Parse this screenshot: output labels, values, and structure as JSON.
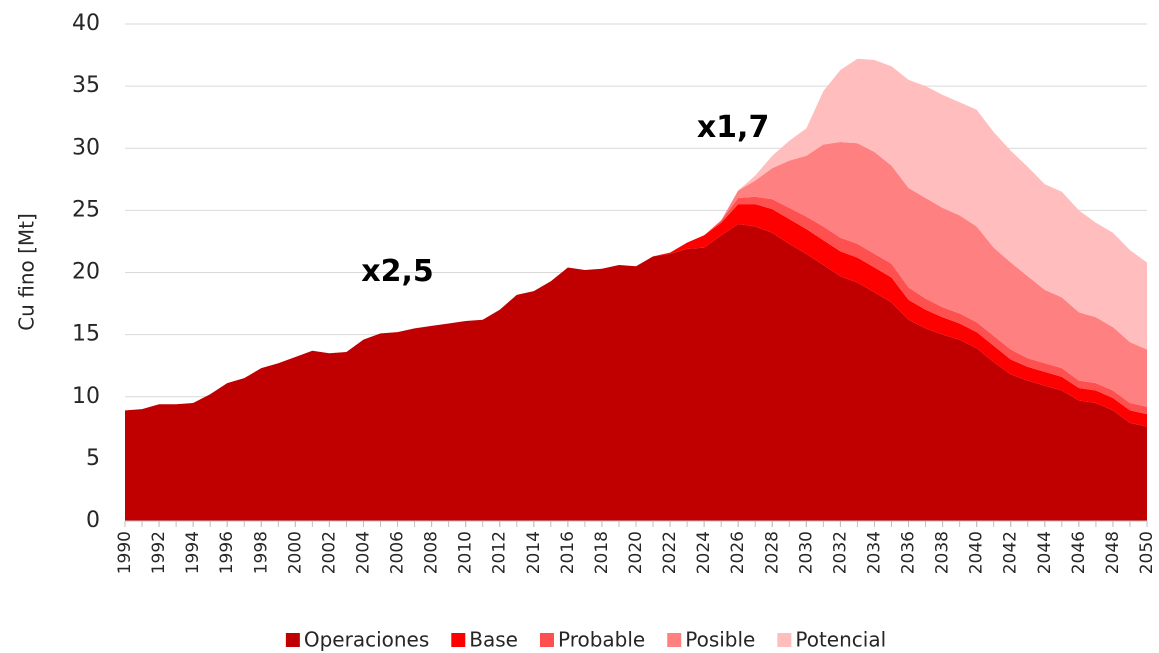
{
  "chart_data": {
    "type": "stacked_area",
    "y_label": "Cu fino [Mt]",
    "annotations": [
      {
        "text": "x2,5",
        "x": 2006,
        "y": 20
      },
      {
        "text": "x1,7",
        "x": 2025.7,
        "y": 31.6
      }
    ],
    "x": [
      1990,
      1991,
      1992,
      1993,
      1994,
      1995,
      1996,
      1997,
      1998,
      1999,
      2000,
      2001,
      2002,
      2003,
      2004,
      2005,
      2006,
      2007,
      2008,
      2009,
      2010,
      2011,
      2012,
      2013,
      2014,
      2015,
      2016,
      2017,
      2018,
      2019,
      2020,
      2021,
      2022,
      2023,
      2024,
      2025,
      2026,
      2027,
      2028,
      2029,
      2030,
      2031,
      2032,
      2033,
      2034,
      2035,
      2036,
      2037,
      2038,
      2039,
      2040,
      2041,
      2042,
      2043,
      2044,
      2045,
      2046,
      2047,
      2048,
      2049,
      2050
    ],
    "xlim": [
      1990,
      2050
    ],
    "xticks": [
      1990,
      1992,
      1994,
      1996,
      1998,
      2000,
      2002,
      2004,
      2006,
      2008,
      2010,
      2012,
      2014,
      2016,
      2018,
      2020,
      2022,
      2024,
      2026,
      2028,
      2030,
      2032,
      2034,
      2036,
      2038,
      2040,
      2042,
      2044,
      2046,
      2048,
      2050
    ],
    "ylim": [
      0,
      40
    ],
    "yticks": [
      0,
      5,
      10,
      15,
      20,
      25,
      30,
      35,
      40
    ],
    "grid": true,
    "legend": "bottom",
    "series": [
      {
        "name": "Operaciones",
        "color": "#c00000",
        "values": [
          8.9,
          9.0,
          9.4,
          9.4,
          9.5,
          10.2,
          11.1,
          11.5,
          12.3,
          12.7,
          13.2,
          13.7,
          13.5,
          13.6,
          14.6,
          15.1,
          15.2,
          15.5,
          15.7,
          15.9,
          16.1,
          16.2,
          17.0,
          18.2,
          18.5,
          19.3,
          20.4,
          20.2,
          20.3,
          20.6,
          20.5,
          21.3,
          21.5,
          21.9,
          22.0,
          23.0,
          23.9,
          23.7,
          23.2,
          22.3,
          21.5,
          20.6,
          19.7,
          19.2,
          18.4,
          17.6,
          16.2,
          15.5,
          15.0,
          14.6,
          13.9,
          12.8,
          11.8,
          11.3,
          10.9,
          10.5,
          9.7,
          9.5,
          8.9,
          7.9,
          7.6
        ]
      },
      {
        "name": "Base",
        "color": "#ff0000",
        "values": [
          0,
          0,
          0,
          0,
          0,
          0,
          0,
          0,
          0,
          0,
          0,
          0,
          0,
          0,
          0,
          0,
          0,
          0,
          0,
          0,
          0,
          0,
          0,
          0,
          0,
          0,
          0,
          0,
          0,
          0,
          0,
          0,
          0.1,
          0.5,
          1.0,
          1.0,
          1.6,
          1.8,
          1.9,
          2.0,
          2.0,
          2.0,
          2.0,
          2.0,
          2.0,
          2.0,
          1.6,
          1.5,
          1.4,
          1.3,
          1.3,
          1.3,
          1.2,
          1.1,
          1.1,
          1.1,
          1.0,
          1.0,
          1.0,
          1.0,
          1.0
        ]
      },
      {
        "name": "Probable",
        "color": "#ff5050",
        "values": [
          0,
          0,
          0,
          0,
          0,
          0,
          0,
          0,
          0,
          0,
          0,
          0,
          0,
          0,
          0,
          0,
          0,
          0,
          0,
          0,
          0,
          0,
          0,
          0,
          0,
          0,
          0,
          0,
          0,
          0,
          0,
          0,
          0,
          0,
          0,
          0.2,
          0.5,
          0.6,
          0.8,
          0.9,
          1.0,
          1.1,
          1.1,
          1.1,
          1.1,
          1.1,
          1.0,
          0.9,
          0.8,
          0.8,
          0.8,
          0.8,
          0.8,
          0.7,
          0.7,
          0.7,
          0.6,
          0.6,
          0.6,
          0.6,
          0.6
        ]
      },
      {
        "name": "Posible",
        "color": "#ff8080",
        "values": [
          0,
          0,
          0,
          0,
          0,
          0,
          0,
          0,
          0,
          0,
          0,
          0,
          0,
          0,
          0,
          0,
          0,
          0,
          0,
          0,
          0,
          0,
          0,
          0,
          0,
          0,
          0,
          0,
          0,
          0,
          0,
          0,
          0,
          0,
          0,
          0,
          0.6,
          1.3,
          2.5,
          3.8,
          4.9,
          6.6,
          7.7,
          8.1,
          8.2,
          7.9,
          8.0,
          8.1,
          8.0,
          7.9,
          7.7,
          7.1,
          7.0,
          6.6,
          5.9,
          5.7,
          5.5,
          5.3,
          5.1,
          4.9,
          4.6
        ]
      },
      {
        "name": "Potencial",
        "color": "#ffbdbd",
        "values": [
          0,
          0,
          0,
          0,
          0,
          0,
          0,
          0,
          0,
          0,
          0,
          0,
          0,
          0,
          0,
          0,
          0,
          0,
          0,
          0,
          0,
          0,
          0,
          0,
          0,
          0,
          0,
          0,
          0,
          0,
          0,
          0,
          0,
          0,
          0,
          0,
          0,
          0.4,
          1.0,
          1.6,
          2.2,
          4.3,
          5.8,
          6.8,
          7.4,
          8.0,
          8.7,
          9.0,
          9.1,
          9.1,
          9.4,
          9.3,
          9.0,
          8.8,
          8.5,
          8.5,
          8.2,
          7.6,
          7.6,
          7.4,
          7.0
        ]
      }
    ]
  }
}
